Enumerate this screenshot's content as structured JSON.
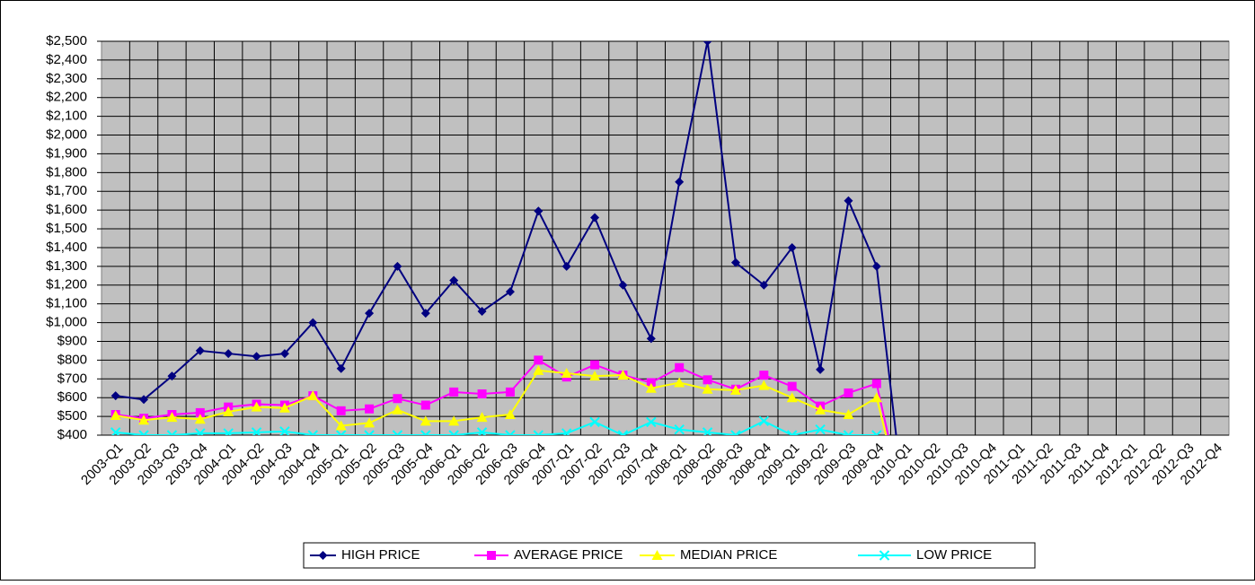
{
  "chart_data": {
    "type": "line",
    "categories": [
      "2003-Q1",
      "2003-Q2",
      "2003-Q3",
      "2003-Q4",
      "2004-Q1",
      "2004-Q2",
      "2004-Q3",
      "2004-Q4",
      "2005-Q1",
      "2005-Q2",
      "2005-Q3",
      "2005-Q4",
      "2006-Q1",
      "2006-Q2",
      "2006-Q3",
      "2006-Q4",
      "2007-Q1",
      "2007-Q2",
      "2007-Q3",
      "2007-Q4",
      "2008-Q1",
      "2008-Q2",
      "2008-Q3",
      "2008-Q4",
      "2009-Q1",
      "2009-Q2",
      "2009-Q3",
      "2009-Q4",
      "2010-Q1",
      "2010-Q2",
      "2010-Q3",
      "2010-Q4",
      "2011-Q1",
      "2011-Q2",
      "2011-Q3",
      "2011-Q4",
      "2012-Q1",
      "2012-Q2",
      "2012-Q3",
      "2012-Q4"
    ],
    "series": [
      {
        "name": "HIGH PRICE",
        "color": "#000080",
        "marker": "diamond",
        "values": [
          610,
          590,
          715,
          850,
          835,
          820,
          835,
          1000,
          755,
          1050,
          1300,
          1050,
          1225,
          1060,
          1165,
          1595,
          1300,
          1560,
          1200,
          915,
          1750,
          2500,
          1320,
          1200,
          1400,
          750,
          1650,
          1300,
          0,
          null,
          null,
          null,
          null,
          null,
          null,
          null,
          null,
          null,
          null,
          null
        ]
      },
      {
        "name": "AVERAGE PRICE",
        "color": "#FF00FF",
        "marker": "square",
        "values": [
          510,
          490,
          510,
          520,
          550,
          565,
          560,
          610,
          530,
          540,
          595,
          560,
          630,
          620,
          630,
          800,
          710,
          775,
          720,
          680,
          760,
          695,
          645,
          720,
          660,
          555,
          625,
          675,
          0,
          null,
          null,
          null,
          null,
          null,
          null,
          null,
          null,
          null,
          null,
          null
        ]
      },
      {
        "name": "MEDIAN PRICE",
        "color": "#FFFF00",
        "marker": "triangle",
        "values": [
          505,
          480,
          495,
          485,
          525,
          550,
          545,
          610,
          450,
          465,
          535,
          475,
          475,
          495,
          510,
          745,
          730,
          715,
          720,
          650,
          680,
          645,
          640,
          665,
          600,
          535,
          510,
          600,
          0,
          null,
          null,
          null,
          null,
          null,
          null,
          null,
          null,
          null,
          null,
          null
        ]
      },
      {
        "name": "LOW PRICE",
        "color": "#00FFFF",
        "marker": "x",
        "values": [
          415,
          400,
          400,
          410,
          410,
          415,
          420,
          400,
          400,
          400,
          400,
          400,
          400,
          415,
          400,
          400,
          410,
          470,
          400,
          470,
          430,
          415,
          400,
          475,
          400,
          430,
          400,
          400,
          0,
          null,
          null,
          null,
          null,
          null,
          null,
          null,
          null,
          null,
          null,
          null
        ]
      }
    ],
    "ylim": [
      400,
      2500
    ],
    "yticks": [
      {
        "value": 400,
        "label": "$400"
      },
      {
        "value": 500,
        "label": "$500"
      },
      {
        "value": 600,
        "label": "$600"
      },
      {
        "value": 700,
        "label": "$700"
      },
      {
        "value": 800,
        "label": "$800"
      },
      {
        "value": 900,
        "label": "$900"
      },
      {
        "value": 1000,
        "label": "$1,000"
      },
      {
        "value": 1100,
        "label": "$1,100"
      },
      {
        "value": 1200,
        "label": "$1,200"
      },
      {
        "value": 1300,
        "label": "$1,300"
      },
      {
        "value": 1400,
        "label": "$1,400"
      },
      {
        "value": 1500,
        "label": "$1,500"
      },
      {
        "value": 1600,
        "label": "$1,600"
      },
      {
        "value": 1700,
        "label": "$1,700"
      },
      {
        "value": 1800,
        "label": "$1,800"
      },
      {
        "value": 1900,
        "label": "$1,900"
      },
      {
        "value": 2000,
        "label": "$2,000"
      },
      {
        "value": 2100,
        "label": "$2,100"
      },
      {
        "value": 2200,
        "label": "$2,200"
      },
      {
        "value": 2300,
        "label": "$2,300"
      },
      {
        "value": 2400,
        "label": "$2,400"
      },
      {
        "value": 2500,
        "label": "$2,500"
      }
    ],
    "grid": true,
    "legend": "bottom"
  }
}
